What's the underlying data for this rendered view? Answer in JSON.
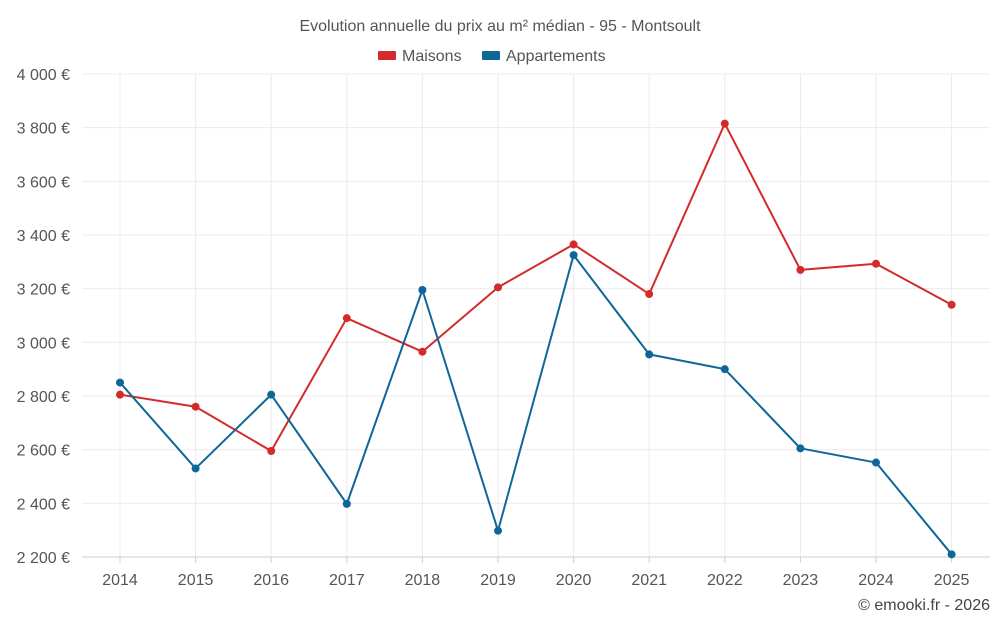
{
  "chart_data": {
    "type": "line",
    "title": "Evolution annuelle du prix au m² médian - 95 - Montsoult",
    "categories": [
      "2014",
      "2015",
      "2016",
      "2017",
      "2018",
      "2019",
      "2020",
      "2021",
      "2022",
      "2023",
      "2024",
      "2025"
    ],
    "series": [
      {
        "name": "Maisons",
        "color": "#d32b2b",
        "values": [
          2805,
          2760,
          2595,
          3090,
          2965,
          3205,
          3365,
          3180,
          3815,
          3270,
          3293,
          3140
        ]
      },
      {
        "name": "Appartements",
        "color": "#0e6798",
        "values": [
          2850,
          2530,
          2805,
          2398,
          3195,
          2298,
          3325,
          2955,
          2900,
          2605,
          2552,
          2210
        ]
      }
    ],
    "ylim": [
      2200,
      4000
    ],
    "yticks": [
      2200,
      2400,
      2600,
      2800,
      3000,
      3200,
      3400,
      3600,
      3800,
      4000
    ],
    "ytick_labels": [
      "2 200 €",
      "2 400 €",
      "2 600 €",
      "2 800 €",
      "3 000 €",
      "3 200 €",
      "3 400 €",
      "3 600 €",
      "3 800 €",
      "4 000 €"
    ],
    "xlabel": "",
    "ylabel": "",
    "legend_position": "top-center",
    "grid": true
  },
  "credit": "© emooki.fr - 2026"
}
